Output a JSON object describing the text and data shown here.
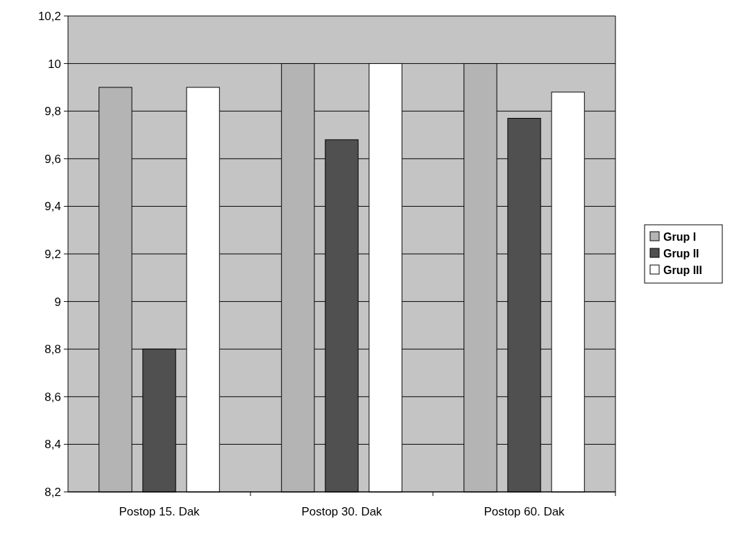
{
  "chart_data": {
    "type": "bar",
    "categories": [
      "Postop 15. Dak",
      "Postop 30. Dak",
      "Postop 60. Dak"
    ],
    "series": [
      {
        "name": "Grup I",
        "color": "#b4b4b4",
        "values": [
          9.9,
          10,
          10
        ]
      },
      {
        "name": "Grup II",
        "color": "#505050",
        "values": [
          8.8,
          9.68,
          9.77
        ]
      },
      {
        "name": "Grup III",
        "color": "#ffffff",
        "values": [
          9.9,
          10,
          9.88
        ]
      }
    ],
    "ylim": [
      8.2,
      10.2
    ],
    "yticks": [
      {
        "value": 8.2,
        "label": "8,2"
      },
      {
        "value": 8.4,
        "label": "8,4"
      },
      {
        "value": 8.6,
        "label": "8,6"
      },
      {
        "value": 8.8,
        "label": "8,8"
      },
      {
        "value": 9,
        "label": "9"
      },
      {
        "value": 9.2,
        "label": "9,2"
      },
      {
        "value": 9.4,
        "label": "9,4"
      },
      {
        "value": 9.6,
        "label": "9,6"
      },
      {
        "value": 9.8,
        "label": "9,8"
      },
      {
        "value": 10,
        "label": "10"
      },
      {
        "value": 10.2,
        "label": "10,2"
      }
    ],
    "grid": "y",
    "legend": "right"
  }
}
